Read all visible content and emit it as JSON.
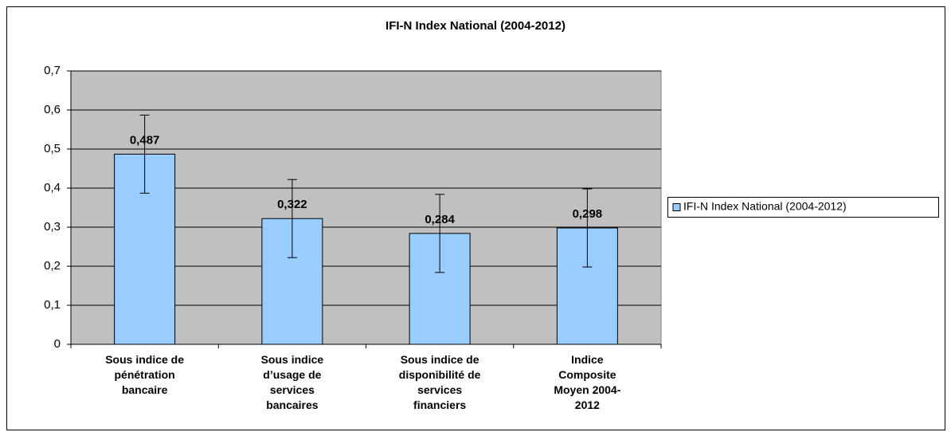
{
  "chart_data": {
    "type": "bar",
    "title": "IFI-N Index National (2004-2012)",
    "categories": [
      "Sous indice de\npénétration\nbancaire",
      "Sous indice\nd’usage de\nservices\nbancaires",
      "Sous indice de\ndisponibilité de\nservices\nfinanciers",
      "Indice\nComposite\nMoyen 2004-\n2012"
    ],
    "series": [
      {
        "name": "IFI-N Index National (2004-2012)",
        "color": "#99ccff",
        "values": [
          0.487,
          0.322,
          0.284,
          0.298
        ],
        "value_labels": [
          "0,487",
          "0,322",
          "0,284",
          "0,298"
        ],
        "errors": [
          0.1,
          0.1,
          0.1,
          0.1
        ]
      }
    ],
    "ylim": [
      0,
      0.7
    ],
    "yticks": [
      0,
      {
        "value": 0.1,
        "label": "0,1"
      },
      {
        "value": 0.2,
        "label": "0,2"
      },
      {
        "value": 0.3,
        "label": "0,3"
      },
      {
        "value": 0.4,
        "label": "0,4"
      },
      {
        "value": 0.5,
        "label": "0,5"
      },
      {
        "value": 0.6,
        "label": "0,6"
      },
      {
        "value": 0.7,
        "label": "0,7"
      }
    ],
    "grid": true,
    "legend": "right",
    "plot_background": "#c0c0c0"
  }
}
